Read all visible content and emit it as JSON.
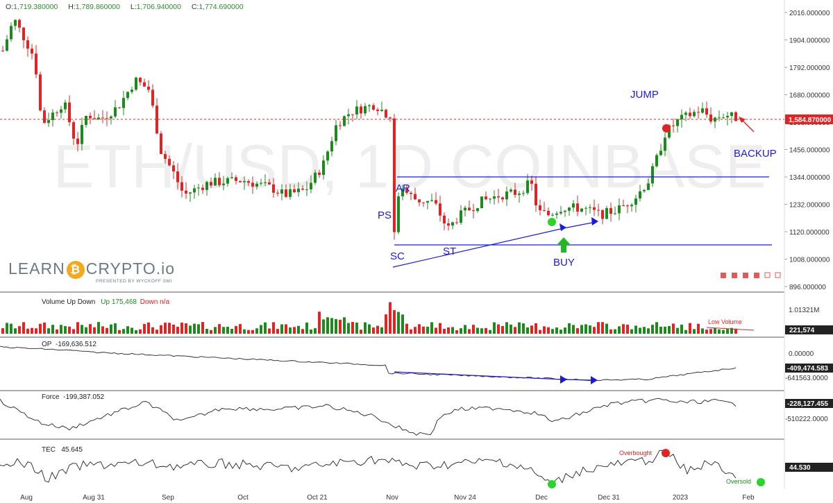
{
  "ohlc_legend": {
    "o_label": "O:",
    "o_value": "1,719.380000",
    "h_label": "H:",
    "h_value": "1,789.860000",
    "l_label": "L:",
    "l_value": "1,706.940000",
    "c_label": "C:",
    "c_value": "1,774.690000"
  },
  "watermark": "ETH/USD, 1D COINBASE",
  "logo": {
    "text_left": "LEARN",
    "text_right": "CRYPTO.io",
    "subtitle": "PRESENTED BY WYCKOFF SMI"
  },
  "colors": {
    "up": "#1e8a1e",
    "down": "#e02424",
    "annotation": "#1a1adb",
    "price_line": "#e02424"
  },
  "price_axis": {
    "labels": [
      "2016.000000",
      "1904.000000",
      "1792.000000",
      "1680.000000",
      "1568.000000",
      "1456.000000",
      "1344.000000",
      "1232.000000",
      "1120.000000",
      "1008.000000",
      "896.000000"
    ],
    "current_price_badge": "1,584.870000"
  },
  "time_axis": [
    "Aug",
    "Aug 31",
    "Sep",
    "Oct",
    "Oct 21",
    "Nov",
    "Nov 24",
    "Dec",
    "Dec 31",
    "2023",
    "Feb"
  ],
  "annotations": {
    "ar": "AR",
    "ps": "PS",
    "sc": "SC",
    "st": "ST",
    "buy": "BUY",
    "jump": "JUMP",
    "backup": "BACKUP"
  },
  "volume_panel": {
    "title": "Volume Up Down",
    "up_label": "Up 175,468",
    "down_label": "Down n/a",
    "axis_top": "1.01321M",
    "badge": "221,574",
    "note": "Low Volume"
  },
  "op_panel": {
    "title": "OP",
    "value": "-169,636.512",
    "axis_top": "0.00000",
    "badge": "-409,474.583",
    "axis_bottom": "-641563.0000"
  },
  "force_panel": {
    "title": "Force",
    "value": "-199,387.052",
    "badge": "-228,127.455",
    "axis_bottom": "-510222.0000"
  },
  "tec_panel": {
    "title": "TEC",
    "value": "45.645",
    "badge": "44.530",
    "overbought": "Overbought",
    "oversold": "Oversold"
  },
  "chart_data": {
    "type": "candlestick",
    "title": "ETH/USD, 1D COINBASE",
    "x_range": [
      "Aug",
      "Feb"
    ],
    "y_range": [
      896,
      2016
    ],
    "bars": 176,
    "support_level": 1070,
    "resistance_level": 1350,
    "current_price": 1584.87,
    "series": [
      {
        "name": "Volume Up Down",
        "values": []
      },
      {
        "name": "OP",
        "values": []
      },
      {
        "name": "Force",
        "values": []
      },
      {
        "name": "TEC",
        "values": []
      }
    ]
  }
}
